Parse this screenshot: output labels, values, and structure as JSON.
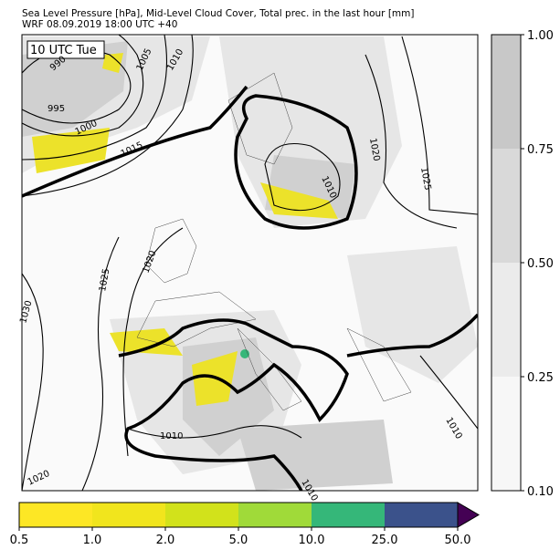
{
  "header": {
    "title_line1": "Sea Level Pressure [hPa], Mid-Level Cloud Cover, Total prec. in the last hour [mm]",
    "title_line2": "WRF 08.09.2019 18:00 UTC +40"
  },
  "map": {
    "time_label": "10 UTC Tue",
    "isobar_labels": [
      "990",
      "995",
      "1000",
      "1005",
      "1010",
      "1015",
      "1020",
      "1025",
      "1010",
      "1020",
      "1025",
      "1030",
      "1010",
      "1020",
      "1010",
      "1010"
    ]
  },
  "cloud_colorbar": {
    "ticks": [
      "0.10",
      "0.25",
      "0.50",
      "0.75",
      "1.00"
    ],
    "colors": [
      "#f7f7f7",
      "#ebebeb",
      "#d9d9d9",
      "#c8c8c8"
    ]
  },
  "precip_colorbar": {
    "ticks": [
      "0.5",
      "1.0",
      "2.0",
      "5.0",
      "10.0",
      "25.0",
      "50.0"
    ],
    "colors": [
      "#fde725",
      "#f1e51d",
      "#d2e21b",
      "#a0da39",
      "#35b779",
      "#3b528b"
    ],
    "extend_color": "#440154"
  }
}
